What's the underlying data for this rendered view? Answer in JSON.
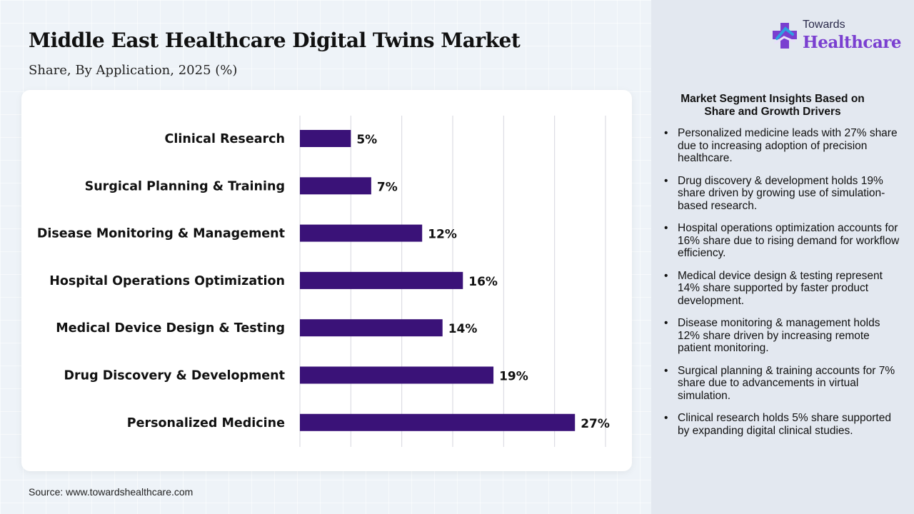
{
  "header": {
    "title": "Middle East Healthcare Digital Twins Market",
    "subtitle": "Share, By Application, 2025 (%)"
  },
  "source": "Source: www.towardshealthcare.com",
  "logo": {
    "top": "Towards",
    "main": "Healthcare"
  },
  "colors": {
    "bar": "#3a1278",
    "grid": "#d6d6de",
    "brand": "#7a3fd0",
    "accent_blue": "#2fa0e0"
  },
  "insights": {
    "title": "Market Segment Insights Based on Share and Growth Drivers",
    "items": [
      "Personalized medicine leads with 27% share due to increasing adoption of precision healthcare.",
      "Drug discovery & development holds 19% share driven by growing use of simulation-based research.",
      "Hospital operations optimization accounts for 16% share due to rising demand for workflow efficiency.",
      "Medical device design & testing represent 14% share supported by faster product development.",
      "Disease monitoring & management holds 12% share driven by increasing remote patient monitoring.",
      "Surgical planning & training accounts for 7% share due to advancements in virtual simulation.",
      "Clinical research holds 5% share supported by expanding digital clinical studies."
    ]
  },
  "chart_data": {
    "type": "bar",
    "orientation": "horizontal",
    "categories": [
      "Clinical Research",
      "Surgical Planning & Training",
      "Disease Monitoring & Management",
      "Hospital Operations Optimization",
      "Medical Device Design & Testing",
      "Drug Discovery & Development",
      "Personalized Medicine"
    ],
    "values": [
      5,
      7,
      12,
      16,
      14,
      19,
      27
    ],
    "value_labels": [
      "5%",
      "7%",
      "12%",
      "16%",
      "14%",
      "19%",
      "27%"
    ],
    "xlim": [
      0,
      30
    ],
    "grid": true,
    "legend": "none"
  }
}
